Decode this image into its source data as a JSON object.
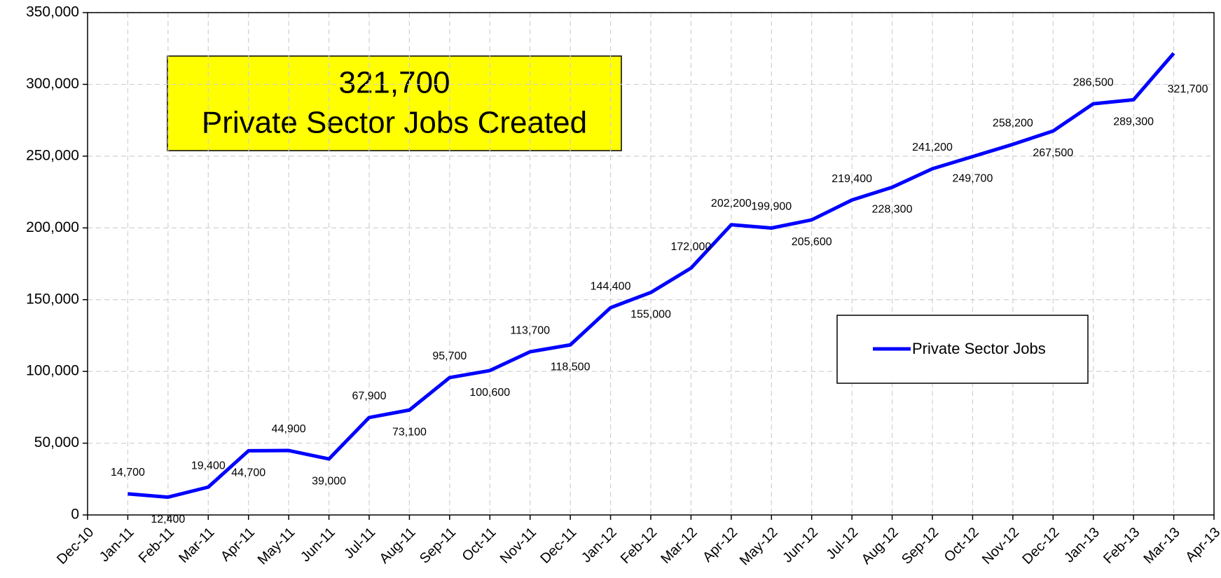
{
  "chart_data": {
    "type": "line",
    "annotation": [
      "321,700",
      "Private Sector Jobs Created"
    ],
    "categories": [
      "Dec-10",
      "Jan-11",
      "Feb-11",
      "Mar-11",
      "Apr-11",
      "May-11",
      "Jun-11",
      "Jul-11",
      "Aug-11",
      "Sep-11",
      "Oct-11",
      "Nov-11",
      "Dec-11",
      "Jan-12",
      "Feb-12",
      "Mar-12",
      "Apr-12",
      "May-12",
      "Jun-12",
      "Jul-12",
      "Aug-12",
      "Sep-12",
      "Oct-12",
      "Nov-12",
      "Dec-12",
      "Jan-13",
      "Feb-13",
      "Mar-13",
      "Apr-13"
    ],
    "series": [
      {
        "name": "Private Sector Jobs",
        "color": "#0000ff",
        "values": [
          null,
          14700,
          12400,
          19400,
          44700,
          44900,
          39000,
          67900,
          73100,
          95700,
          100600,
          113700,
          118500,
          144400,
          155000,
          172000,
          202200,
          199900,
          205600,
          219400,
          228300,
          241200,
          249700,
          258200,
          267500,
          286500,
          289300,
          321700,
          null
        ],
        "value_labels": [
          null,
          "14,700",
          "12,400",
          "19,400",
          "44,700",
          "44,900",
          "39,000",
          "67,900",
          "73,100",
          "95,700",
          "100,600",
          "113,700",
          "118,500",
          "144,400",
          "155,000",
          "172,000",
          "202,200",
          "199,900",
          "205,600",
          "219,400",
          "228,300",
          "241,200",
          "249,700",
          "258,200",
          "267,500",
          "286,500",
          "289,300",
          "321,700",
          null
        ]
      }
    ],
    "ylim": [
      0,
      350000
    ],
    "yticks": [
      0,
      {
        "value": 50000,
        "label": "50,000"
      },
      {
        "value": 100000,
        "label": "100,000"
      },
      {
        "value": 150000,
        "label": "150,000"
      },
      {
        "value": 200000,
        "label": "200,000"
      },
      {
        "value": 250000,
        "label": "250,000"
      },
      {
        "value": 300000,
        "label": "300,000"
      },
      {
        "value": 350000,
        "label": "350,000"
      }
    ],
    "grid": true,
    "legend": "right"
  }
}
